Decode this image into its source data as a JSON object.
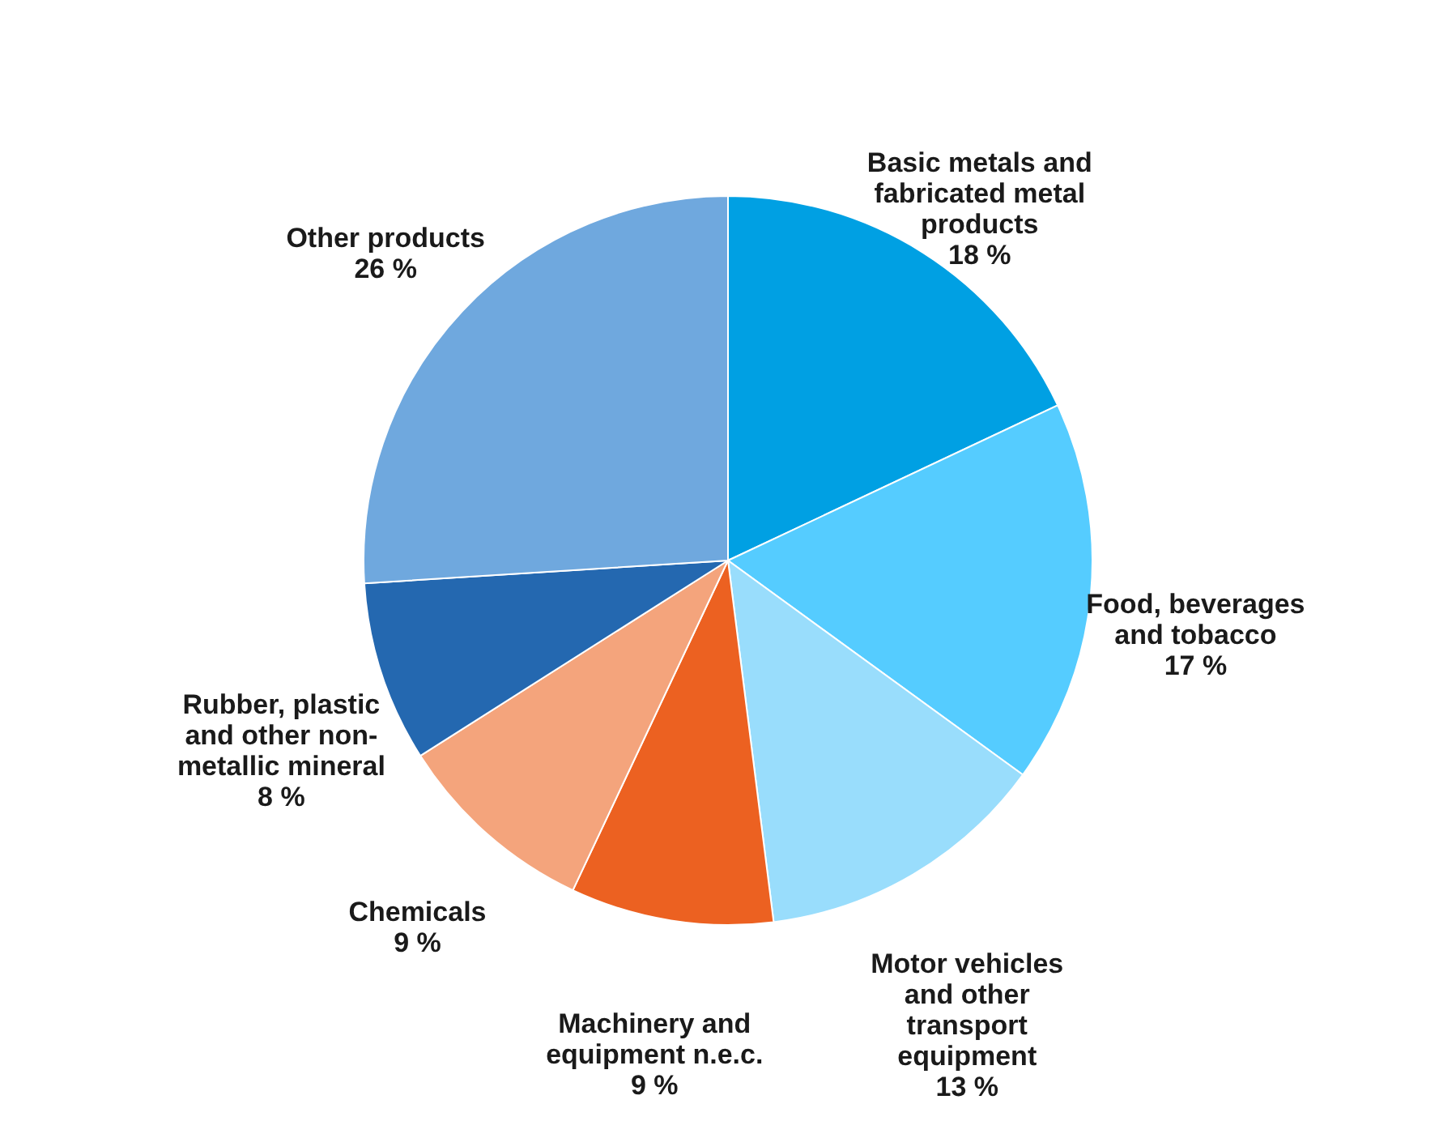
{
  "chart_data": {
    "type": "pie",
    "categories": [
      "Basic metals and fabricated metal products",
      "Food, beverages and tobacco",
      "Motor vehicles and other transport equipment",
      "Machinery and equipment n.e.c.",
      "Chemicals",
      "Rubber, plastic and other non-metallic mineral",
      "Other products"
    ],
    "values": [
      18,
      17,
      13,
      9,
      9,
      8,
      26
    ],
    "value_labels": [
      "18 %",
      "17 %",
      "13 %",
      "9 %",
      "9 %",
      "8 %",
      "26 %"
    ],
    "colors": [
      "#00a0e3",
      "#55ccff",
      "#99ddfc",
      "#ec6121",
      "#f4a47c",
      "#2468b0",
      "#6fa8de"
    ],
    "legend": false
  }
}
